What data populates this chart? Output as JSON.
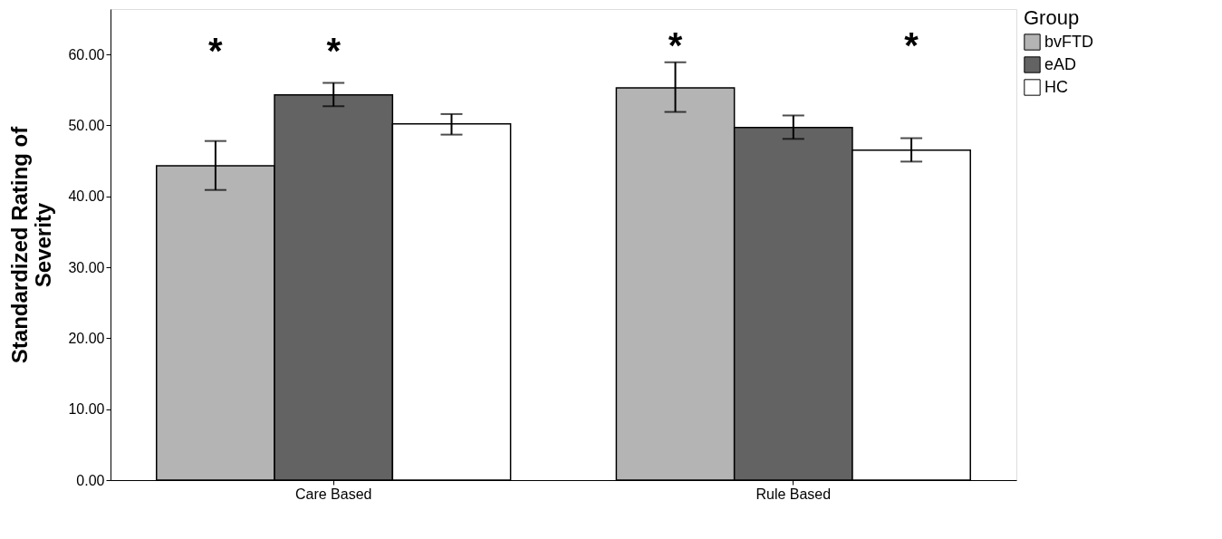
{
  "chart_data": {
    "type": "bar",
    "ylabel": "Standardized Rating of Severity",
    "legend_title": "Group",
    "legend": "top right",
    "categories": [
      "Care Based",
      "Rule Based"
    ],
    "series": [
      {
        "name": "bvFTD",
        "color": "#b4b4b4",
        "values": [
          44.3,
          55.3
        ],
        "errors": [
          [
            40.9,
            47.8
          ],
          [
            51.9,
            58.9
          ]
        ]
      },
      {
        "name": "eAD",
        "color": "#636363",
        "values": [
          54.3,
          49.7
        ],
        "errors": [
          [
            52.7,
            56.0
          ],
          [
            48.1,
            51.4
          ]
        ]
      },
      {
        "name": "HC",
        "color": "#ffffff",
        "values": [
          50.2,
          46.5
        ],
        "errors": [
          [
            48.7,
            51.6
          ],
          [
            44.9,
            48.2
          ]
        ]
      }
    ],
    "ylim": [
      0,
      66.4
    ],
    "yticks": [
      {
        "value": 0,
        "label": "0.00"
      },
      {
        "value": 10,
        "label": "10.00"
      },
      {
        "value": 20,
        "label": "20.00"
      },
      {
        "value": 30,
        "label": "30.00"
      },
      {
        "value": 40,
        "label": "40.00"
      },
      {
        "value": 50,
        "label": "50.00"
      },
      {
        "value": 60,
        "label": "60.00"
      }
    ],
    "grid": false,
    "annotations": [
      "*",
      "*",
      "*",
      "*"
    ]
  }
}
